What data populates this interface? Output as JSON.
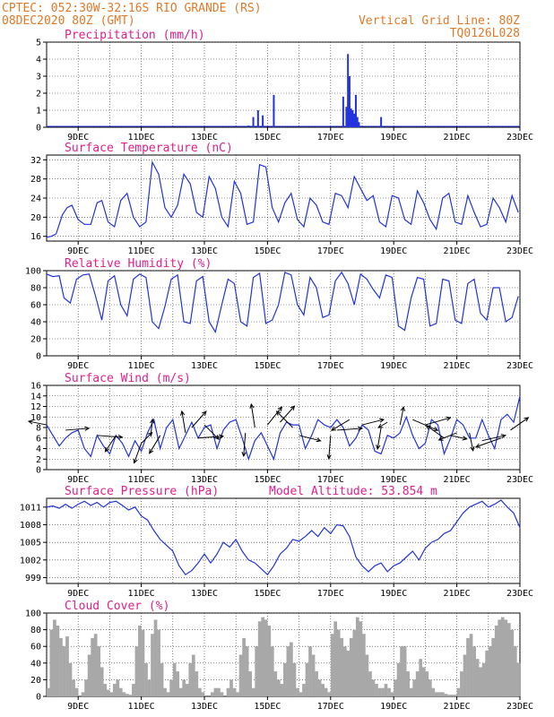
{
  "header": {
    "left_line1": "CPTEC:  052:30W-32:16S  RIO GRANDE (RS)",
    "left_line2": "08DEC2020 80Z (GMT)",
    "right_line1": "Vertical Grid Line: 80Z",
    "right_line2": "TQ0126L028"
  },
  "colors": {
    "header": "#e07a2a",
    "title": "#e0208a",
    "line": "#2233dd",
    "cloud": "#a8a8a8",
    "arrow": "#000000"
  },
  "x_axis": {
    "start_day": 8,
    "end_day": 23,
    "tick_days": [
      9,
      11,
      13,
      15,
      17,
      19,
      21,
      23
    ],
    "tick_labels": [
      "9DEC",
      "11DEC",
      "13DEC",
      "15DEC",
      "17DEC",
      "19DEC",
      "21DEC",
      "23DEC"
    ]
  },
  "chart_data": [
    {
      "type": "bar",
      "title": "Precipitation (mm/h)",
      "ylim": [
        0,
        5
      ],
      "yticks": [
        0,
        1,
        2,
        3,
        4,
        5
      ],
      "x": [
        14.4,
        14.55,
        14.7,
        14.85,
        15.2,
        17.4,
        17.5,
        17.55,
        17.6,
        17.65,
        17.7,
        17.75,
        17.8,
        17.85,
        17.9,
        18.6
      ],
      "values": [
        0.1,
        0.6,
        1.0,
        0.7,
        1.9,
        1.8,
        1.2,
        4.3,
        3.0,
        1.1,
        1.0,
        0.8,
        1.9,
        0.6,
        0.3,
        0.6
      ]
    },
    {
      "type": "line",
      "title": "Surface Temperature (nC)",
      "ylim": [
        15,
        33
      ],
      "yticks": [
        16,
        20,
        24,
        28,
        32
      ],
      "x": [
        8.0,
        8.15,
        8.3,
        8.5,
        8.65,
        8.8,
        9.0,
        9.2,
        9.4,
        9.6,
        9.75,
        9.95,
        10.15,
        10.35,
        10.55,
        10.75,
        10.95,
        11.15,
        11.35,
        11.55,
        11.75,
        11.95,
        12.15,
        12.35,
        12.55,
        12.75,
        12.95,
        13.15,
        13.35,
        13.55,
        13.75,
        13.95,
        14.15,
        14.35,
        14.55,
        14.75,
        14.95,
        15.15,
        15.35,
        15.55,
        15.75,
        15.95,
        16.15,
        16.35,
        16.55,
        16.75,
        16.95,
        17.15,
        17.35,
        17.55,
        17.75,
        17.95,
        18.15,
        18.35,
        18.55,
        18.75,
        18.95,
        19.15,
        19.35,
        19.55,
        19.75,
        19.95,
        20.15,
        20.35,
        20.55,
        20.75,
        20.95,
        21.15,
        21.35,
        21.55,
        21.75,
        21.95,
        22.15,
        22.35,
        22.55,
        22.75,
        22.95
      ],
      "values": [
        15.8,
        16.0,
        16.5,
        20.5,
        22.0,
        22.5,
        19.5,
        18.5,
        18.5,
        23.0,
        23.5,
        19.0,
        18.0,
        23.5,
        25.0,
        20.0,
        18.0,
        19.0,
        31.5,
        29.0,
        22.0,
        20.0,
        22.5,
        29.0,
        27.0,
        21.0,
        20.0,
        28.5,
        26.0,
        20.0,
        18.0,
        27.5,
        25.0,
        18.5,
        19.0,
        31.0,
        30.5,
        22.0,
        19.0,
        23.0,
        25.0,
        19.5,
        18.0,
        24.0,
        22.5,
        19.0,
        18.5,
        25.0,
        24.5,
        22.0,
        28.5,
        26.0,
        23.5,
        24.5,
        19.0,
        18.0,
        24.5,
        24.0,
        19.5,
        18.5,
        25.5,
        23.0,
        19.5,
        17.5,
        24.0,
        25.0,
        19.0,
        18.5,
        24.5,
        21.0,
        18.0,
        18.5,
        24.0,
        22.0,
        19.0,
        24.5,
        21.0
      ]
    },
    {
      "type": "line",
      "title": "Relative Humidity (%)",
      "ylim": [
        0,
        100
      ],
      "yticks": [
        0,
        20,
        40,
        60,
        80,
        100
      ],
      "x": [
        8.0,
        8.2,
        8.4,
        8.55,
        8.75,
        8.95,
        9.15,
        9.35,
        9.55,
        9.75,
        9.95,
        10.15,
        10.35,
        10.55,
        10.75,
        10.95,
        11.15,
        11.35,
        11.55,
        11.75,
        11.95,
        12.15,
        12.35,
        12.55,
        12.75,
        12.95,
        13.15,
        13.35,
        13.55,
        13.75,
        13.95,
        14.15,
        14.35,
        14.55,
        14.75,
        14.95,
        15.15,
        15.35,
        15.55,
        15.75,
        15.95,
        16.15,
        16.35,
        16.55,
        16.75,
        16.95,
        17.15,
        17.35,
        17.55,
        17.75,
        17.95,
        18.15,
        18.35,
        18.55,
        18.75,
        18.95,
        19.15,
        19.35,
        19.55,
        19.75,
        19.95,
        20.15,
        20.35,
        20.55,
        20.75,
        20.95,
        21.15,
        21.35,
        21.55,
        21.75,
        21.95,
        22.15,
        22.35,
        22.55,
        22.75,
        22.95
      ],
      "values": [
        96,
        93,
        94,
        68,
        62,
        90,
        95,
        96,
        70,
        42,
        88,
        94,
        60,
        47,
        90,
        96,
        92,
        40,
        32,
        58,
        90,
        95,
        40,
        38,
        88,
        93,
        40,
        28,
        60,
        90,
        85,
        40,
        35,
        92,
        97,
        38,
        42,
        60,
        98,
        95,
        60,
        48,
        92,
        80,
        45,
        48,
        88,
        98,
        85,
        60,
        96,
        90,
        78,
        68,
        95,
        92,
        35,
        30,
        68,
        92,
        90,
        35,
        38,
        90,
        88,
        42,
        38,
        85,
        90,
        50,
        42,
        80,
        80,
        40,
        45,
        70
      ]
    },
    {
      "type": "line",
      "title": "Surface Wind (m/s)",
      "ylim": [
        0,
        16
      ],
      "yticks": [
        0,
        2,
        4,
        6,
        8,
        10,
        12,
        14,
        16
      ],
      "x": [
        8.0,
        8.2,
        8.4,
        8.6,
        8.8,
        9.0,
        9.2,
        9.4,
        9.6,
        9.8,
        10.0,
        10.2,
        10.4,
        10.6,
        10.8,
        11.0,
        11.2,
        11.4,
        11.6,
        11.8,
        12.0,
        12.2,
        12.4,
        12.6,
        12.8,
        13.0,
        13.2,
        13.4,
        13.6,
        13.8,
        14.0,
        14.2,
        14.4,
        14.6,
        14.8,
        15.0,
        15.2,
        15.4,
        15.6,
        15.8,
        16.0,
        16.2,
        16.4,
        16.6,
        16.8,
        17.0,
        17.2,
        17.4,
        17.6,
        17.8,
        18.0,
        18.2,
        18.4,
        18.6,
        18.8,
        19.0,
        19.2,
        19.4,
        19.6,
        19.8,
        20.0,
        20.2,
        20.4,
        20.6,
        20.8,
        21.0,
        21.2,
        21.4,
        21.6,
        21.8,
        22.0,
        22.2,
        22.4,
        22.6,
        22.8,
        23.0
      ],
      "values": [
        8.5,
        6.5,
        4.5,
        6.0,
        7.0,
        7.5,
        4.0,
        2.5,
        6.5,
        4.5,
        3.0,
        6.5,
        5.0,
        2.5,
        5.5,
        3.5,
        7.0,
        9.5,
        4.0,
        8.0,
        9.5,
        4.0,
        6.5,
        9.0,
        6.0,
        8.0,
        8.5,
        4.0,
        7.5,
        9.0,
        9.5,
        6.0,
        2.0,
        5.5,
        7.0,
        4.5,
        2.0,
        7.0,
        9.0,
        8.5,
        8.5,
        4.0,
        6.5,
        9.5,
        8.5,
        8.0,
        9.5,
        8.0,
        4.5,
        6.0,
        8.5,
        7.5,
        3.5,
        3.0,
        6.5,
        6.0,
        7.0,
        10.0,
        6.5,
        4.0,
        5.0,
        9.5,
        8.5,
        3.0,
        6.0,
        9.5,
        8.5,
        6.0,
        6.0,
        9.5,
        6.5,
        4.0,
        9.5,
        10.5,
        9.0,
        14.0
      ],
      "vectors": [
        {
          "x": 8.0,
          "y": 8.5,
          "u": -1.0,
          "v": 0.2
        },
        {
          "x": 8.6,
          "y": 7.5,
          "u": 1.3,
          "v": 0.1
        },
        {
          "x": 9.6,
          "y": 6.5,
          "u": 1.4,
          "v": -0.1
        },
        {
          "x": 10.2,
          "y": 6.5,
          "u": -0.6,
          "v": -0.9
        },
        {
          "x": 11.0,
          "y": 5.0,
          "u": -0.4,
          "v": -1.1
        },
        {
          "x": 11.0,
          "y": 5.0,
          "u": 0.6,
          "v": 0.6
        },
        {
          "x": 11.3,
          "y": 6.5,
          "u": 0.1,
          "v": 0.9
        },
        {
          "x": 11.6,
          "y": 6.5,
          "u": -0.6,
          "v": -1.0
        },
        {
          "x": 12.4,
          "y": 7.0,
          "u": -0.2,
          "v": 1.2
        },
        {
          "x": 12.6,
          "y": 8.0,
          "u": 0.8,
          "v": 0.9
        },
        {
          "x": 12.8,
          "y": 6.0,
          "u": 1.4,
          "v": 0.1
        },
        {
          "x": 13.0,
          "y": 8.5,
          "u": 0.8,
          "v": -0.8
        },
        {
          "x": 14.3,
          "y": 7.0,
          "u": -0.1,
          "v": -1.3
        },
        {
          "x": 14.6,
          "y": 8.0,
          "u": -0.2,
          "v": 1.3
        },
        {
          "x": 15.0,
          "y": 8.5,
          "u": 0.8,
          "v": 1.0
        },
        {
          "x": 15.4,
          "y": 9.0,
          "u": 0.8,
          "v": 0.9
        },
        {
          "x": 15.8,
          "y": 8.0,
          "u": -0.9,
          "v": 0.9
        },
        {
          "x": 16.0,
          "y": 6.5,
          "u": 1.2,
          "v": -0.3
        },
        {
          "x": 17.0,
          "y": 6.5,
          "u": -0.1,
          "v": -1.3
        },
        {
          "x": 17.2,
          "y": 7.5,
          "u": 1.4,
          "v": 0.1
        },
        {
          "x": 17.6,
          "y": 9.5,
          "u": -1.0,
          "v": -0.6
        },
        {
          "x": 18.0,
          "y": 8.5,
          "u": 1.2,
          "v": 0.3
        },
        {
          "x": 18.6,
          "y": 8.0,
          "u": -0.2,
          "v": -1.2
        },
        {
          "x": 18.8,
          "y": 9.0,
          "u": -0.5,
          "v": -0.3
        },
        {
          "x": 19.2,
          "y": 8.5,
          "u": 0.2,
          "v": 1.0
        },
        {
          "x": 19.6,
          "y": 9.5,
          "u": 1.4,
          "v": -0.6
        },
        {
          "x": 20.0,
          "y": 8.5,
          "u": 1.4,
          "v": 0.4
        },
        {
          "x": 20.6,
          "y": 6.0,
          "u": -1.0,
          "v": 0.7
        },
        {
          "x": 20.8,
          "y": 6.5,
          "u": 0.9,
          "v": -0.2
        },
        {
          "x": 21.0,
          "y": 7.0,
          "u": -1.0,
          "v": -0.4
        },
        {
          "x": 21.4,
          "y": 7.0,
          "u": 0.2,
          "v": -1.0
        },
        {
          "x": 21.8,
          "y": 5.5,
          "u": 1.3,
          "v": 0.3
        },
        {
          "x": 22.4,
          "y": 6.0,
          "u": -1.4,
          "v": -0.5
        },
        {
          "x": 22.7,
          "y": 7.5,
          "u": 1.0,
          "v": 0.7
        }
      ]
    },
    {
      "type": "line",
      "title": "Surface Pressure (hPa)",
      "annotation": "Model Altitude: 53.854  m",
      "ylim": [
        998,
        1012.5
      ],
      "yticks": [
        999,
        1002,
        1005,
        1008,
        1011
      ],
      "x": [
        8.0,
        8.2,
        8.4,
        8.6,
        8.8,
        9.0,
        9.2,
        9.4,
        9.6,
        9.8,
        10.0,
        10.2,
        10.4,
        10.6,
        10.8,
        11.0,
        11.2,
        11.4,
        11.6,
        11.8,
        12.0,
        12.2,
        12.4,
        12.6,
        12.8,
        13.0,
        13.2,
        13.4,
        13.6,
        13.8,
        14.0,
        14.2,
        14.4,
        14.6,
        14.8,
        15.0,
        15.2,
        15.4,
        15.6,
        15.8,
        16.0,
        16.2,
        16.4,
        16.6,
        16.8,
        17.0,
        17.2,
        17.4,
        17.6,
        17.8,
        18.0,
        18.2,
        18.4,
        18.6,
        18.8,
        19.0,
        19.2,
        19.4,
        19.6,
        19.8,
        20.0,
        20.2,
        20.4,
        20.6,
        20.8,
        21.0,
        21.2,
        21.4,
        21.6,
        21.8,
        22.0,
        22.2,
        22.4,
        22.6,
        22.8,
        23.0
      ],
      "values": [
        1011.0,
        1011.2,
        1010.8,
        1011.5,
        1010.8,
        1011.5,
        1012.0,
        1011.3,
        1011.8,
        1011.0,
        1011.8,
        1012.0,
        1011.3,
        1010.5,
        1011.0,
        1009.5,
        1008.8,
        1007.0,
        1005.5,
        1004.5,
        1003.5,
        1001.0,
        999.5,
        1000.2,
        1001.5,
        1003.0,
        1001.5,
        1003.0,
        1005.0,
        1004.2,
        1005.5,
        1003.5,
        1002.0,
        1001.5,
        1000.5,
        999.5,
        1001.0,
        1003.0,
        1004.0,
        1005.5,
        1005.2,
        1006.0,
        1007.0,
        1006.0,
        1007.5,
        1006.5,
        1008.0,
        1007.8,
        1006.0,
        1002.5,
        1001.0,
        1000.0,
        1001.0,
        1001.5,
        1000.0,
        1001.0,
        1001.5,
        1002.5,
        1003.5,
        1002.0,
        1004.0,
        1005.0,
        1005.5,
        1006.5,
        1007.0,
        1008.5,
        1010.0,
        1011.0,
        1011.5,
        1012.0,
        1011.0,
        1011.5,
        1012.2,
        1011.0,
        1010.0,
        1007.5
      ]
    },
    {
      "type": "bar",
      "title": "Cloud Cover (%)",
      "ylim": [
        0,
        100
      ],
      "yticks": [
        0,
        20,
        40,
        60,
        80,
        100
      ],
      "x": [
        8.0,
        8.1,
        8.2,
        8.3,
        8.4,
        8.5,
        8.6,
        8.7,
        8.8,
        8.9,
        9.0,
        9.1,
        9.2,
        9.3,
        9.4,
        9.5,
        9.6,
        9.7,
        9.8,
        9.9,
        10.0,
        10.1,
        10.2,
        10.3,
        10.4,
        10.5,
        10.6,
        10.7,
        10.8,
        10.9,
        11.0,
        11.1,
        11.2,
        11.3,
        11.4,
        11.5,
        11.6,
        11.7,
        11.8,
        11.9,
        12.0,
        12.1,
        12.2,
        12.3,
        12.4,
        12.5,
        12.6,
        12.7,
        12.8,
        12.9,
        13.0,
        13.1,
        13.2,
        13.3,
        13.4,
        13.5,
        13.6,
        13.7,
        13.8,
        13.9,
        14.0,
        14.1,
        14.2,
        14.3,
        14.4,
        14.5,
        14.6,
        14.7,
        14.8,
        14.9,
        15.0,
        15.1,
        15.2,
        15.3,
        15.4,
        15.5,
        15.6,
        15.7,
        15.8,
        15.9,
        16.0,
        16.1,
        16.2,
        16.3,
        16.4,
        16.5,
        16.6,
        16.7,
        16.8,
        16.9,
        17.0,
        17.1,
        17.2,
        17.3,
        17.4,
        17.5,
        17.6,
        17.7,
        17.8,
        17.9,
        18.0,
        18.1,
        18.2,
        18.3,
        18.4,
        18.5,
        18.6,
        18.7,
        18.8,
        18.9,
        19.0,
        19.1,
        19.2,
        19.3,
        19.4,
        19.5,
        19.6,
        19.7,
        19.8,
        19.9,
        20.0,
        20.1,
        20.2,
        20.3,
        20.4,
        20.5,
        20.6,
        20.7,
        20.8,
        20.9,
        21.0,
        21.1,
        21.2,
        21.3,
        21.4,
        21.5,
        21.6,
        21.7,
        21.8,
        21.9,
        22.0,
        22.1,
        22.2,
        22.3,
        22.4,
        22.5,
        22.6,
        22.7,
        22.8,
        22.9
      ],
      "values": [
        10,
        80,
        92,
        85,
        70,
        60,
        72,
        40,
        20,
        10,
        0,
        5,
        20,
        50,
        70,
        75,
        60,
        35,
        15,
        8,
        5,
        15,
        20,
        10,
        5,
        3,
        2,
        15,
        60,
        85,
        80,
        40,
        20,
        75,
        92,
        80,
        40,
        10,
        5,
        20,
        40,
        30,
        10,
        20,
        15,
        40,
        50,
        30,
        10,
        5,
        0,
        0,
        5,
        10,
        10,
        5,
        0,
        10,
        20,
        10,
        5,
        50,
        70,
        60,
        30,
        10,
        60,
        90,
        95,
        92,
        85,
        60,
        30,
        20,
        15,
        40,
        60,
        65,
        40,
        10,
        5,
        15,
        40,
        60,
        50,
        30,
        20,
        15,
        10,
        5,
        75,
        90,
        80,
        70,
        60,
        55,
        70,
        80,
        95,
        90,
        75,
        50,
        30,
        20,
        15,
        10,
        10,
        15,
        10,
        5,
        20,
        40,
        60,
        60,
        30,
        10,
        20,
        30,
        45,
        35,
        30,
        20,
        10,
        5,
        5,
        5,
        3,
        2,
        2,
        2,
        10,
        30,
        50,
        70,
        75,
        60,
        45,
        35,
        40,
        55,
        60,
        70,
        85,
        92,
        95,
        92,
        88,
        80,
        60,
        40
      ]
    }
  ]
}
